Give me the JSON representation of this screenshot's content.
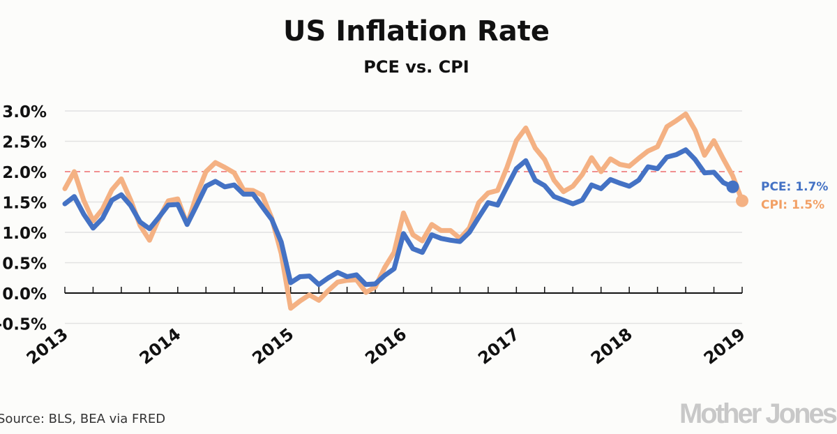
{
  "chart_data": {
    "type": "line",
    "title": "US Inflation Rate",
    "subtitle": "PCE vs. CPI",
    "xlabel": "",
    "ylabel": "",
    "x_tick_labels": [
      "2013",
      "2014",
      "2015",
      "2016",
      "2017",
      "2018",
      "2019"
    ],
    "y_tick_labels": [
      "3.0%",
      "2.5%",
      "2.0%",
      "1.5%",
      "1.0%",
      "0.5%",
      "0.0%",
      "-0.5%"
    ],
    "y_ticks": [
      3.0,
      2.5,
      2.0,
      1.5,
      1.0,
      0.5,
      0.0,
      -0.5
    ],
    "xlim": [
      "2013-01",
      "2019-01"
    ],
    "ylim": [
      -0.5,
      3.0
    ],
    "grid": true,
    "reference_line": {
      "value": 2.0,
      "color": "#f09090",
      "style": "dashed"
    },
    "x": [
      "2013-01",
      "2013-02",
      "2013-03",
      "2013-04",
      "2013-05",
      "2013-06",
      "2013-07",
      "2013-08",
      "2013-09",
      "2013-10",
      "2013-11",
      "2013-12",
      "2014-01",
      "2014-02",
      "2014-03",
      "2014-04",
      "2014-05",
      "2014-06",
      "2014-07",
      "2014-08",
      "2014-09",
      "2014-10",
      "2014-11",
      "2014-12",
      "2015-01",
      "2015-02",
      "2015-03",
      "2015-04",
      "2015-05",
      "2015-06",
      "2015-07",
      "2015-08",
      "2015-09",
      "2015-10",
      "2015-11",
      "2015-12",
      "2016-01",
      "2016-02",
      "2016-03",
      "2016-04",
      "2016-05",
      "2016-06",
      "2016-07",
      "2016-08",
      "2016-09",
      "2016-10",
      "2016-11",
      "2016-12",
      "2017-01",
      "2017-02",
      "2017-03",
      "2017-04",
      "2017-05",
      "2017-06",
      "2017-07",
      "2017-08",
      "2017-09",
      "2017-10",
      "2017-11",
      "2017-12",
      "2018-01",
      "2018-02",
      "2018-03",
      "2018-04",
      "2018-05",
      "2018-06",
      "2018-07",
      "2018-08",
      "2018-09",
      "2018-10",
      "2018-11",
      "2018-12",
      "2019-01"
    ],
    "series": [
      {
        "name": "PCE",
        "color": "#4472c4",
        "end_label": "PCE: 1.7%",
        "values": [
          1.47,
          1.59,
          1.3,
          1.07,
          1.23,
          1.53,
          1.62,
          1.44,
          1.17,
          1.06,
          1.25,
          1.45,
          1.46,
          1.13,
          1.44,
          1.76,
          1.84,
          1.75,
          1.78,
          1.63,
          1.63,
          1.42,
          1.21,
          0.84,
          0.17,
          0.27,
          0.28,
          0.14,
          0.25,
          0.34,
          0.27,
          0.3,
          0.14,
          0.15,
          0.29,
          0.4,
          0.98,
          0.73,
          0.67,
          0.96,
          0.9,
          0.87,
          0.85,
          1.0,
          1.25,
          1.49,
          1.45,
          1.75,
          2.05,
          2.18,
          1.86,
          1.77,
          1.59,
          1.53,
          1.47,
          1.53,
          1.78,
          1.72,
          1.87,
          1.81,
          1.76,
          1.86,
          2.08,
          2.05,
          2.24,
          2.28,
          2.36,
          2.2,
          1.98,
          1.99,
          1.82,
          1.75,
          null
        ]
      },
      {
        "name": "CPI",
        "color": "#f4b183",
        "end_label": "CPI: 1.5%",
        "label_color": "#f2a065",
        "values": [
          1.72,
          2.0,
          1.53,
          1.19,
          1.38,
          1.7,
          1.88,
          1.53,
          1.11,
          0.87,
          1.23,
          1.52,
          1.55,
          1.13,
          1.61,
          2.0,
          2.15,
          2.07,
          1.98,
          1.7,
          1.69,
          1.61,
          1.23,
          0.65,
          -0.25,
          -0.13,
          -0.03,
          -0.12,
          0.04,
          0.18,
          0.21,
          0.22,
          0.01,
          0.1,
          0.42,
          0.67,
          1.32,
          0.96,
          0.86,
          1.13,
          1.03,
          1.03,
          0.9,
          1.07,
          1.49,
          1.65,
          1.69,
          2.07,
          2.51,
          2.72,
          2.39,
          2.2,
          1.86,
          1.67,
          1.76,
          1.95,
          2.23,
          2.0,
          2.21,
          2.12,
          2.09,
          2.22,
          2.34,
          2.41,
          2.74,
          2.84,
          2.95,
          2.68,
          2.27,
          2.51,
          2.21,
          1.93,
          1.52
        ]
      }
    ],
    "source": "Source: BLS, BEA via FRED"
  },
  "branding": {
    "logo_text": "Mother Jones"
  }
}
